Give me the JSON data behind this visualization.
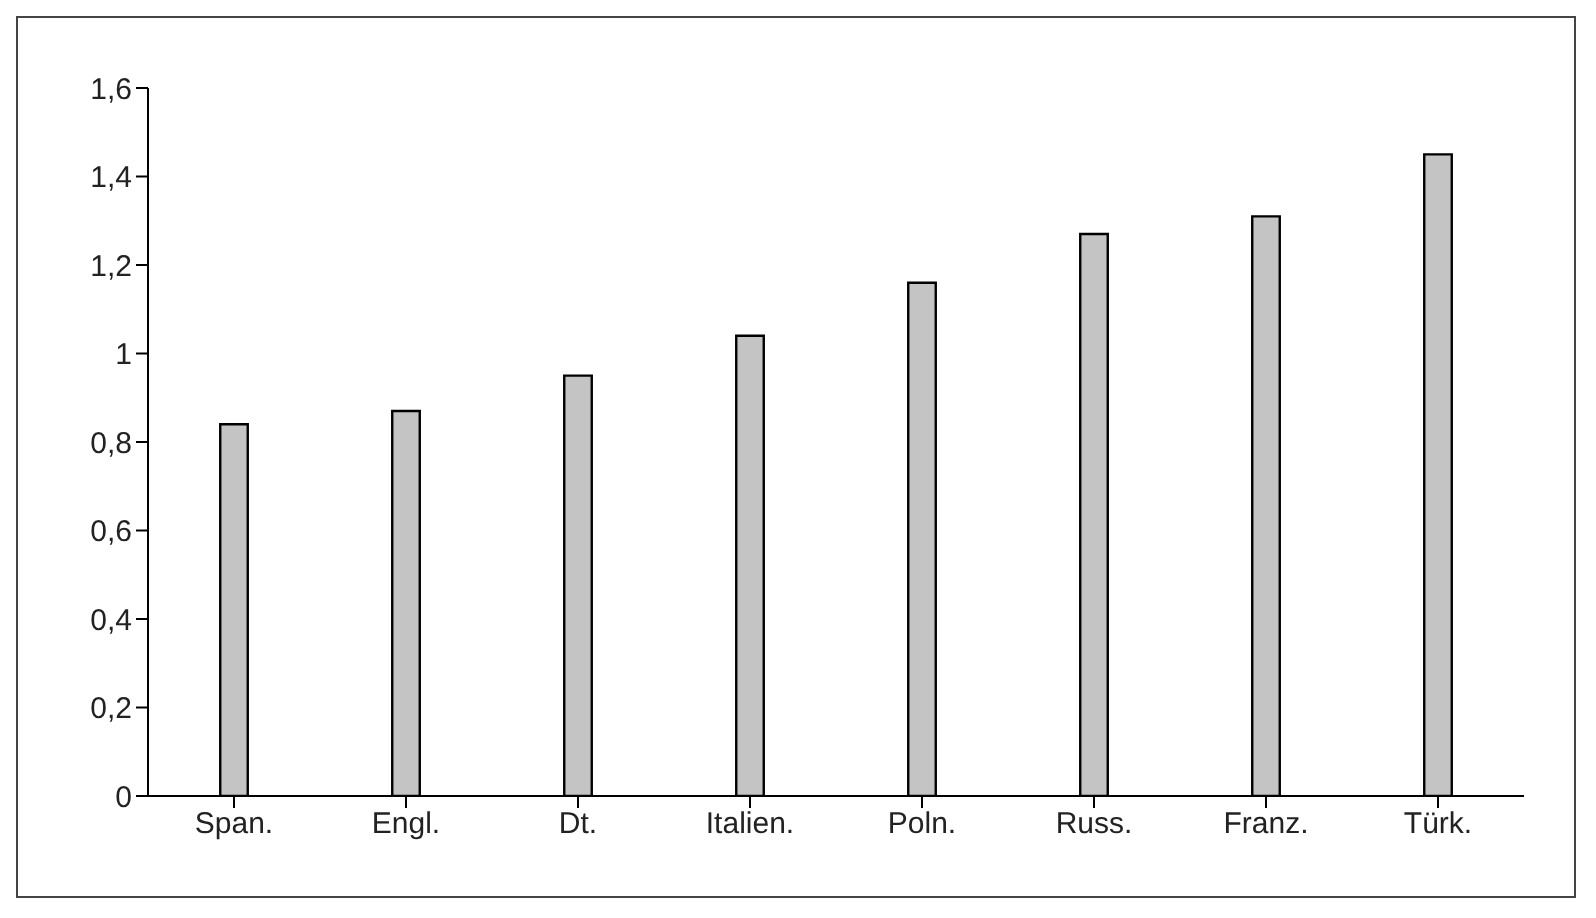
{
  "chart_data": {
    "type": "bar",
    "categories": [
      "Span.",
      "Engl.",
      "Dt.",
      "Italien.",
      "Poln.",
      "Russ.",
      "Franz.",
      "Türk."
    ],
    "values": [
      0.84,
      0.87,
      0.95,
      1.04,
      1.16,
      1.27,
      1.31,
      1.45
    ],
    "color": "#c4c4c4",
    "ylim": [
      0,
      1.6
    ],
    "yticks": [
      0,
      {
        "value": 0.2,
        "label": "0,2"
      },
      {
        "value": 0.4,
        "label": "0,4"
      },
      {
        "value": 0.6,
        "label": "0,6"
      },
      {
        "value": 0.8,
        "label": "0,8"
      },
      1,
      {
        "value": 1.2,
        "label": "1,2"
      },
      {
        "value": 1.4,
        "label": "1,4"
      },
      {
        "value": 1.6,
        "label": "1,6"
      }
    ],
    "grid": false,
    "legend": false
  }
}
